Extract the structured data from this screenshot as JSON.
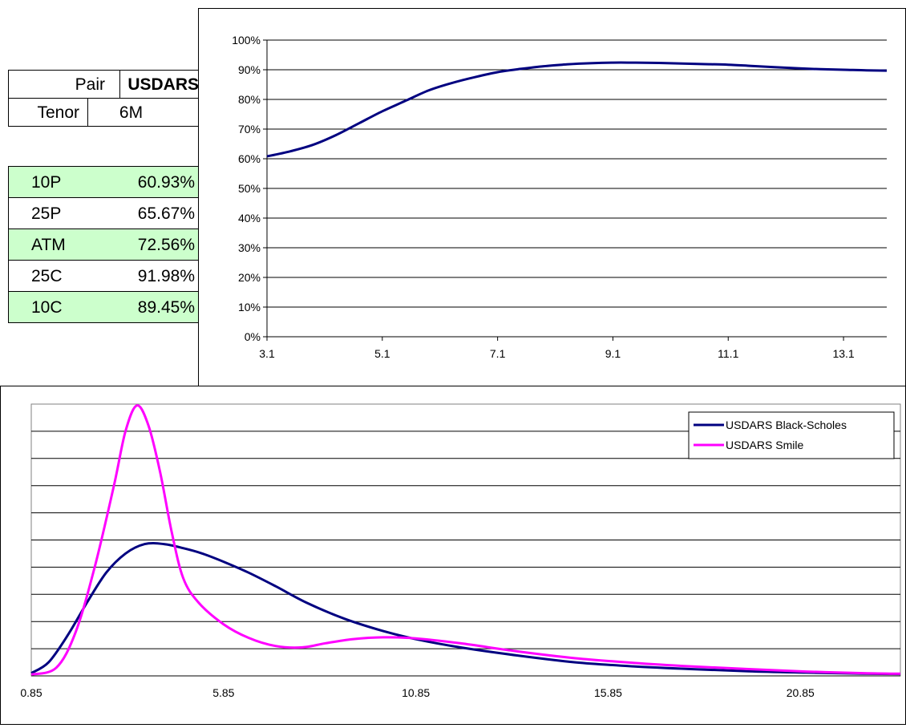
{
  "pair_table": {
    "pair_label": "Pair",
    "pair_value": "USDARS",
    "tenor_label": "Tenor",
    "tenor_value": "6M"
  },
  "vol_table": {
    "rows": [
      {
        "label": "10P",
        "value": "60.93%",
        "highlight": true
      },
      {
        "label": "25P",
        "value": "65.67%",
        "highlight": false
      },
      {
        "label": "ATM",
        "value": "72.56%",
        "highlight": true
      },
      {
        "label": "25C",
        "value": "91.98%",
        "highlight": false
      },
      {
        "label": "10C",
        "value": "89.45%",
        "highlight": true
      }
    ]
  },
  "colors": {
    "navy": "#000080",
    "magenta": "#ff00ff",
    "highlight_green": "#ccffcc"
  },
  "chart_data": [
    {
      "type": "line",
      "title": "",
      "xlabel": "",
      "ylabel": "",
      "xlim": [
        3.1,
        13.85
      ],
      "ylim": [
        0,
        1
      ],
      "grid": true,
      "x_ticks": [
        3.1,
        5.1,
        7.1,
        9.1,
        11.1,
        13.1
      ],
      "x_tick_labels": [
        "3.1",
        "5.1",
        "7.1",
        "9.1",
        "11.1",
        "13.1"
      ],
      "y_ticks": [
        0,
        0.1,
        0.2,
        0.3,
        0.4,
        0.5,
        0.6,
        0.7,
        0.8,
        0.9,
        1.0
      ],
      "y_tick_labels": [
        "0%",
        "10%",
        "20%",
        "30%",
        "40%",
        "50%",
        "60%",
        "70%",
        "80%",
        "90%",
        "100%"
      ],
      "series": [
        {
          "color": "#000080",
          "x": [
            3.1,
            3.5,
            3.9,
            4.3,
            4.7,
            5.1,
            5.5,
            5.9,
            6.3,
            6.7,
            7.1,
            7.5,
            7.9,
            8.3,
            8.7,
            9.1,
            9.5,
            9.9,
            10.3,
            10.7,
            11.1,
            11.5,
            11.9,
            12.3,
            12.7,
            13.1,
            13.5,
            13.85
          ],
          "y": [
            0.608,
            0.625,
            0.647,
            0.68,
            0.72,
            0.76,
            0.795,
            0.83,
            0.855,
            0.875,
            0.892,
            0.903,
            0.912,
            0.918,
            0.922,
            0.924,
            0.924,
            0.923,
            0.921,
            0.919,
            0.917,
            0.913,
            0.909,
            0.905,
            0.902,
            0.9,
            0.898,
            0.897
          ]
        }
      ]
    },
    {
      "type": "line",
      "title": "",
      "xlabel": "",
      "ylabel": "",
      "xlim": [
        0.85,
        23.45
      ],
      "ylim": [
        0,
        10
      ],
      "grid": true,
      "x_ticks": [
        0.85,
        5.85,
        10.85,
        15.85,
        20.85
      ],
      "x_tick_labels": [
        "0.85",
        "5.85",
        "10.85",
        "15.85",
        "20.85"
      ],
      "legend_position": "top-right",
      "series": [
        {
          "name": "USDARS Black-Scholes",
          "color": "#000080",
          "x": [
            0.85,
            1.3,
            1.8,
            2.3,
            2.8,
            3.3,
            3.8,
            4.3,
            4.8,
            5.3,
            5.85,
            6.5,
            7.2,
            8.0,
            9.0,
            10.0,
            10.85,
            12.0,
            13.5,
            15.0,
            16.5,
            18.0,
            19.5,
            21.0,
            22.5,
            23.45
          ],
          "y": [
            0.1,
            0.5,
            1.5,
            2.7,
            3.8,
            4.5,
            4.85,
            4.85,
            4.7,
            4.5,
            4.2,
            3.8,
            3.3,
            2.7,
            2.1,
            1.65,
            1.35,
            1.05,
            0.75,
            0.5,
            0.35,
            0.25,
            0.17,
            0.12,
            0.08,
            0.07
          ]
        },
        {
          "name": "USDARS Smile",
          "color": "#ff00ff",
          "x": [
            0.85,
            1.5,
            2.0,
            2.5,
            3.0,
            3.3,
            3.6,
            3.9,
            4.2,
            4.5,
            4.8,
            5.2,
            5.85,
            6.5,
            7.2,
            7.9,
            8.5,
            9.2,
            10.0,
            10.85,
            12.0,
            13.5,
            15.0,
            16.5,
            18.0,
            19.5,
            21.0,
            22.5,
            23.45
          ],
          "y": [
            0.05,
            0.3,
            1.6,
            4.0,
            7.0,
            9.0,
            9.95,
            9.2,
            7.5,
            5.3,
            3.6,
            2.7,
            1.9,
            1.4,
            1.1,
            1.05,
            1.2,
            1.35,
            1.42,
            1.38,
            1.2,
            0.9,
            0.65,
            0.48,
            0.35,
            0.25,
            0.16,
            0.1,
            0.08
          ]
        }
      ]
    }
  ]
}
